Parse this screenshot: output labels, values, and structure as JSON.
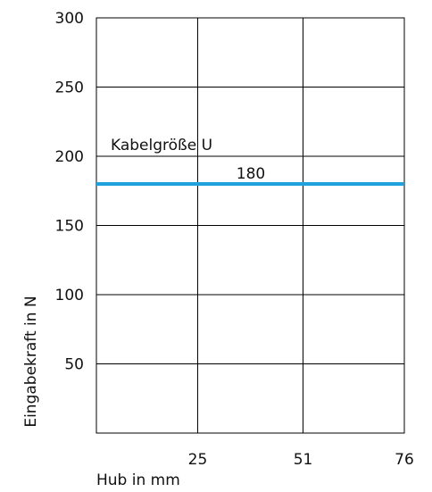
{
  "chart_data": {
    "type": "line",
    "title": "",
    "xlabel": "Hub in mm",
    "ylabel": "Eingabekraft in N",
    "xlim": [
      0,
      76
    ],
    "ylim": [
      0,
      300
    ],
    "x_ticks": [
      25,
      51,
      76
    ],
    "x_tick_labels": [
      "25",
      "51",
      "76"
    ],
    "y_ticks": [
      50,
      100,
      150,
      200,
      250,
      300
    ],
    "y_tick_labels": [
      "50",
      "100",
      "150",
      "200",
      "250",
      "300"
    ],
    "grid": true,
    "series": [
      {
        "name": "Kabelgröße U",
        "x": [
          0,
          76
        ],
        "values": [
          180,
          180
        ],
        "color": "#1ea1dd",
        "value_label": "180"
      }
    ]
  }
}
